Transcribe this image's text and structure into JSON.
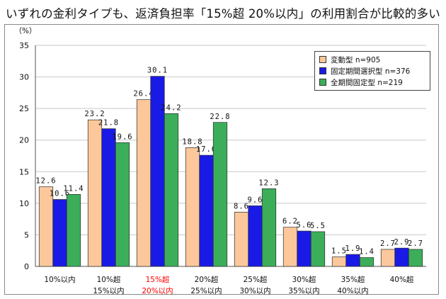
{
  "title": "いずれの金利タイプも、返済負担率「15%超 20%以内」の利用割合が比較的多い",
  "chart_data": {
    "type": "bar",
    "ylabel": "（%）",
    "ylim": [
      0,
      35
    ],
    "yticks": [
      0,
      5,
      10,
      15,
      20,
      25,
      30,
      35
    ],
    "grid": true,
    "legend_position": "top-right",
    "categories": [
      [
        "10%以内"
      ],
      [
        "10%超",
        "15%以内"
      ],
      [
        "15%超",
        "20%以内"
      ],
      [
        "20%超",
        "25%以内"
      ],
      [
        "25%超",
        "30%以内"
      ],
      [
        "30%超",
        "35%以内"
      ],
      [
        "35%超",
        "40%以内"
      ],
      [
        "40%超"
      ]
    ],
    "highlight_category_index": 2,
    "highlight_color": "#ff0000",
    "series": [
      {
        "name": "変動型 n=905",
        "color": "#fcc89b",
        "values": [
          12.6,
          23.2,
          26.4,
          18.8,
          8.6,
          6.2,
          1.5,
          2.7
        ],
        "labels": [
          "12.6",
          "23.2",
          "26.4",
          "18.8",
          "8.6",
          "6.2",
          "1.5",
          "2.7"
        ]
      },
      {
        "name": "固定期間選択型 n=376",
        "color": "#1a1ae6",
        "values": [
          10.6,
          21.8,
          30.1,
          17.6,
          9.6,
          5.6,
          1.9,
          2.9
        ],
        "labels": [
          "10.6",
          "21.8",
          "30.1",
          "17.6",
          "9.6",
          "5.6",
          "1.9",
          "2.9"
        ]
      },
      {
        "name": "全期間固定型 n=219",
        "color": "#3cae5a",
        "values": [
          11.4,
          19.6,
          24.2,
          22.8,
          12.3,
          5.5,
          1.4,
          2.7
        ],
        "labels": [
          "11.4",
          "19.6",
          "24.2",
          "22.8",
          "12.3",
          "5.5",
          "1.4",
          "2.7"
        ]
      }
    ]
  }
}
